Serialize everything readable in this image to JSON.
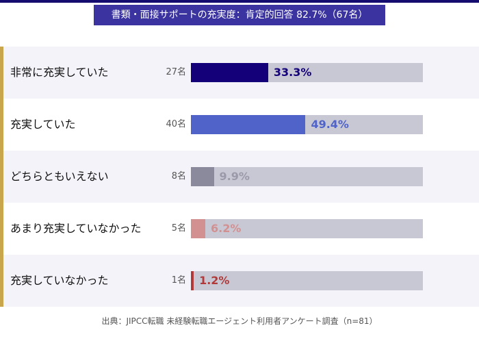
{
  "chart_data": {
    "type": "bar",
    "title": "書類・面接サポートの充実度：肯定的回答 82.7%（67名）",
    "categories": [
      "非常に充実していた",
      "充実していた",
      "どちらともいえない",
      "あまり充実していなかった",
      "充実していなかった"
    ],
    "counts": [
      "27名",
      "40名",
      "8名",
      "5名",
      "1名"
    ],
    "values": [
      33.3,
      49.4,
      9.9,
      6.2,
      1.2
    ],
    "value_labels": [
      "33.3%",
      "49.4%",
      "9.9%",
      "6.2%",
      "1.2%"
    ],
    "colors": [
      "#140078",
      "#4f63c9",
      "#8a8a9c",
      "#d39090",
      "#b03a3a"
    ],
    "label_colors": [
      "#140078",
      "#4f63c9",
      "#9a9aab",
      "#d39090",
      "#b03a3a"
    ],
    "xlim": [
      0,
      100
    ],
    "source": "出典：JIPCC転職 未経験転職エージェント利用者アンケート調査（n=81）"
  }
}
